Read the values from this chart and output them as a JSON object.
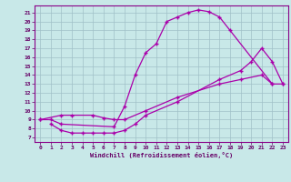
{
  "xlabel": "Windchill (Refroidissement éolien,°C)",
  "xlim": [
    -0.5,
    23.5
  ],
  "ylim": [
    6.5,
    21.8
  ],
  "xticks": [
    0,
    1,
    2,
    3,
    4,
    5,
    6,
    7,
    8,
    9,
    10,
    11,
    12,
    13,
    14,
    15,
    16,
    17,
    18,
    19,
    20,
    21,
    22,
    23
  ],
  "yticks": [
    7,
    8,
    9,
    10,
    11,
    12,
    13,
    14,
    15,
    16,
    17,
    18,
    19,
    20,
    21
  ],
  "background_color": "#c8e8e8",
  "grid_color": "#a0c0c8",
  "line_color": "#aa00aa",
  "line1_x": [
    0,
    1,
    2,
    7,
    8,
    9,
    10,
    11,
    12,
    13,
    14,
    15,
    16,
    17,
    18,
    22
  ],
  "line1_y": [
    9,
    9,
    8.5,
    8.2,
    10.5,
    14,
    16.5,
    17.5,
    20,
    20.5,
    21,
    21.3,
    21.1,
    20.5,
    19,
    13
  ],
  "line2_x": [
    1,
    2,
    3,
    4,
    5,
    6,
    7,
    8,
    9,
    10,
    13,
    17,
    19,
    20,
    21,
    22,
    23
  ],
  "line2_y": [
    8.5,
    7.8,
    7.5,
    7.5,
    7.5,
    7.5,
    7.5,
    7.8,
    8.5,
    9.5,
    11,
    13.5,
    14.5,
    15.5,
    17,
    15.5,
    13
  ],
  "line3_x": [
    0,
    2,
    3,
    5,
    6,
    7,
    8,
    10,
    13,
    17,
    19,
    21,
    22,
    23
  ],
  "line3_y": [
    9,
    9.5,
    9.5,
    9.5,
    9.2,
    9.0,
    9.0,
    10,
    11.5,
    13.0,
    13.5,
    14.0,
    13.0,
    13.0
  ]
}
